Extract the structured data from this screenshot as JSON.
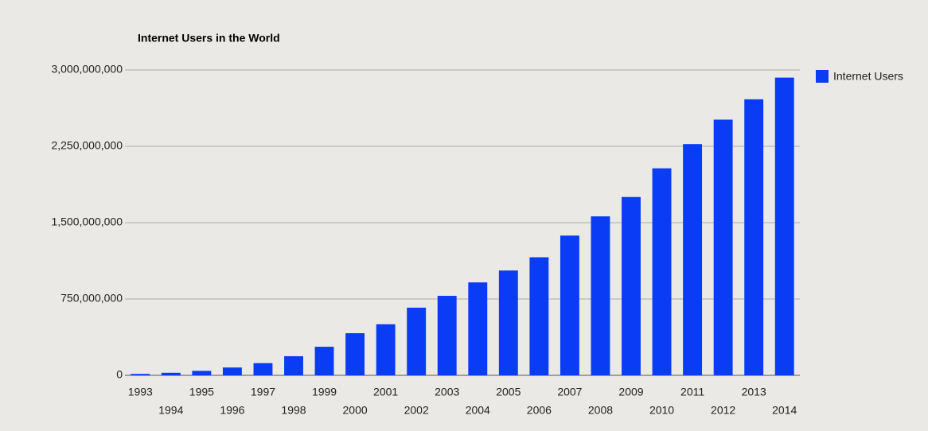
{
  "chart_data": {
    "type": "bar",
    "title": "Internet Users in the World",
    "categories": [
      "1993",
      "1994",
      "1995",
      "1996",
      "1997",
      "1998",
      "1999",
      "2000",
      "2001",
      "2002",
      "2003",
      "2004",
      "2005",
      "2006",
      "2007",
      "2008",
      "2009",
      "2010",
      "2011",
      "2012",
      "2013",
      "2014"
    ],
    "series": [
      {
        "name": "Internet Users",
        "color": "#0b3cf5",
        "values": [
          14000000,
          25000000,
          44000000,
          77000000,
          120000000,
          188000000,
          281000000,
          414000000,
          502000000,
          665000000,
          781000000,
          913000000,
          1030000000,
          1160000000,
          1373000000,
          1562000000,
          1752000000,
          2034000000,
          2272000000,
          2512000000,
          2712000000,
          2925000000
        ]
      }
    ],
    "ylim": [
      0,
      3000000000
    ],
    "yticks": [
      {
        "value": 0,
        "label": "0"
      },
      {
        "value": 750000000,
        "label": "750,000,000"
      },
      {
        "value": 1500000000,
        "label": "1,500,000,000"
      },
      {
        "value": 2250000000,
        "label": "2,250,000,000"
      },
      {
        "value": 3000000000,
        "label": "3,000,000,000"
      }
    ],
    "grid": true,
    "legend": "right"
  }
}
